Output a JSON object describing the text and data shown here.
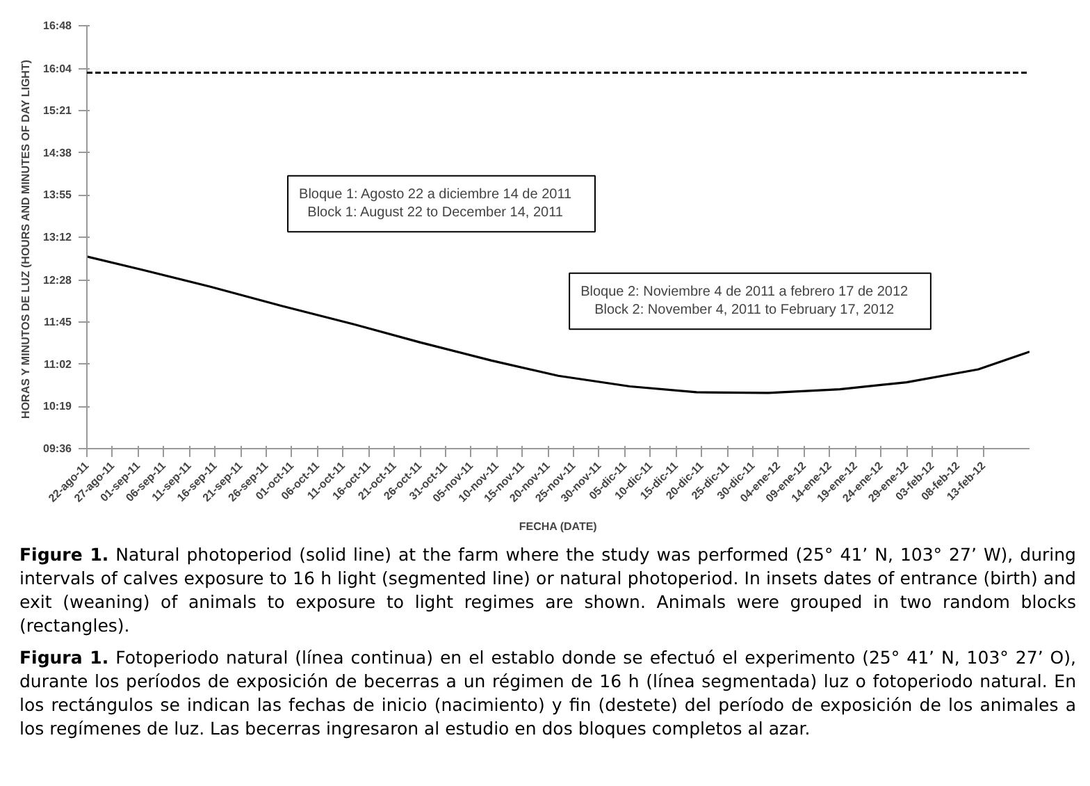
{
  "chart_data": {
    "type": "line",
    "xlabel": "FECHA (DATE)",
    "ylabel": "HORAS Y MINUTOS DE LUZ  (HOURS AND MINUTES OF DAY LIGHT)",
    "x": [
      "2011-08-22",
      "2011-09-02",
      "2011-09-15",
      "2011-09-29",
      "2011-10-13",
      "2011-10-26",
      "2011-11-09",
      "2011-11-22",
      "2011-12-06",
      "2011-12-19",
      "2012-01-02",
      "2012-01-16",
      "2012-01-29",
      "2012-02-12",
      "2012-02-22"
    ],
    "series": [
      {
        "color": "#000000",
        "values": [
          12.87,
          12.64,
          12.36,
          12.03,
          11.72,
          11.41,
          11.1,
          10.84,
          10.66,
          10.56,
          10.55,
          10.61,
          10.73,
          10.95,
          11.25
        ]
      }
    ],
    "xlim": [
      "2011-08-22",
      "2012-02-22"
    ],
    "xticks": [
      {
        "value": "2011-08-22",
        "label": "22-ago-11"
      },
      {
        "value": "2011-08-27",
        "label": "27-ago-11"
      },
      {
        "value": "2011-09-01",
        "label": "01-sep-11"
      },
      {
        "value": "2011-09-06",
        "label": "06-sep-11"
      },
      {
        "value": "2011-09-11",
        "label": "11-sep-11"
      },
      {
        "value": "2011-09-16",
        "label": "16-sep-11"
      },
      {
        "value": "2011-09-21",
        "label": "21-sep-11"
      },
      {
        "value": "2011-09-26",
        "label": "26-sep-11"
      },
      {
        "value": "2011-10-01",
        "label": "01-oct-11"
      },
      {
        "value": "2011-10-06",
        "label": "06-oct-11"
      },
      {
        "value": "2011-10-11",
        "label": "11-oct-11"
      },
      {
        "value": "2011-10-16",
        "label": "16-oct-11"
      },
      {
        "value": "2011-10-21",
        "label": "21-oct-11"
      },
      {
        "value": "2011-10-26",
        "label": "26-oct-11"
      },
      {
        "value": "2011-10-31",
        "label": "31-oct-11"
      },
      {
        "value": "2011-11-05",
        "label": "05-nov-11"
      },
      {
        "value": "2011-11-10",
        "label": "10-nov-11"
      },
      {
        "value": "2011-11-15",
        "label": "15-nov-11"
      },
      {
        "value": "2011-11-20",
        "label": "20-nov-11"
      },
      {
        "value": "2011-11-25",
        "label": "25-nov-11"
      },
      {
        "value": "2011-11-30",
        "label": "30-nov-11"
      },
      {
        "value": "2011-12-05",
        "label": "05-dic-11"
      },
      {
        "value": "2011-12-10",
        "label": "10-dic-11"
      },
      {
        "value": "2011-12-15",
        "label": "15-dic-11"
      },
      {
        "value": "2011-12-20",
        "label": "20-dic-11"
      },
      {
        "value": "2011-12-25",
        "label": "25-dic-11"
      },
      {
        "value": "2011-12-30",
        "label": "30-dic-11"
      },
      {
        "value": "2012-01-04",
        "label": "04-ene-12"
      },
      {
        "value": "2012-01-09",
        "label": "09-ene-12"
      },
      {
        "value": "2012-01-14",
        "label": "14-ene-12"
      },
      {
        "value": "2012-01-19",
        "label": "19-ene-12"
      },
      {
        "value": "2012-01-24",
        "label": "24-ene-12"
      },
      {
        "value": "2012-01-29",
        "label": "29-ene-12"
      },
      {
        "value": "2012-02-03",
        "label": "03-feb-12"
      },
      {
        "value": "2012-02-08",
        "label": "08-feb-12"
      },
      {
        "value": "2012-02-13",
        "label": "13-feb-12"
      }
    ],
    "ylim": [
      9.6,
      16.8
    ],
    "yticks": [
      {
        "value": 9.6,
        "label": "09:36"
      },
      {
        "value": 10.3167,
        "label": "10:19"
      },
      {
        "value": 11.0333,
        "label": "11:02"
      },
      {
        "value": 11.75,
        "label": "11:45"
      },
      {
        "value": 12.4667,
        "label": "12:28"
      },
      {
        "value": 13.2,
        "label": "13:12"
      },
      {
        "value": 13.9167,
        "label": "13:55"
      },
      {
        "value": 14.6333,
        "label": "14:38"
      },
      {
        "value": 15.35,
        "label": "15:21"
      },
      {
        "value": 16.0667,
        "label": "16:04"
      },
      {
        "value": 16.8,
        "label": "16:48"
      }
    ],
    "ref_lines": [
      {
        "axis": "y",
        "value": 16,
        "line_style": "dashed",
        "color": "#000000"
      }
    ],
    "grid": false,
    "line_style": "solid",
    "marker": "none",
    "annotations": [
      "Bloque 1:    Agosto 22 a diciembre 14 de 2011\nBlock 1:    August 22 to December 14, 2011",
      "Bloque 2:   Noviembre  4 de 2011 a febrero 17 de 2012\nBlock 2:   November  4, 2011 to February 17, 2012",
      "Figure 1.   Natural photoperiod (solid line) at the farm where the study was performed (25° 41’ N, 103° 27’ W), during intervals of calves exposure to 16 h light (segmented line) or natural photoperiod. In insets dates of entrance (birth) and exit (weaning) of animals to exposure to light regimes are shown. Animals were grouped in two random blocks (rectangles).",
      "Figura 1.   Fotoperiodo natural (línea continua) en el establo donde se efectuó el experimento (25° 41’ N, 103° 27’ O), durante los períodos de exposición de becerras a un régimen de 16 h (línea segmentada) luz o fotoperiodo natural. En los rectángulos se indican las fechas de inicio (nacimiento) y fin (destete) del período de exposición de los animales a los regímenes de luz. Las becerras ingresaron al estudio en dos bloques completos al azar."
    ]
  }
}
